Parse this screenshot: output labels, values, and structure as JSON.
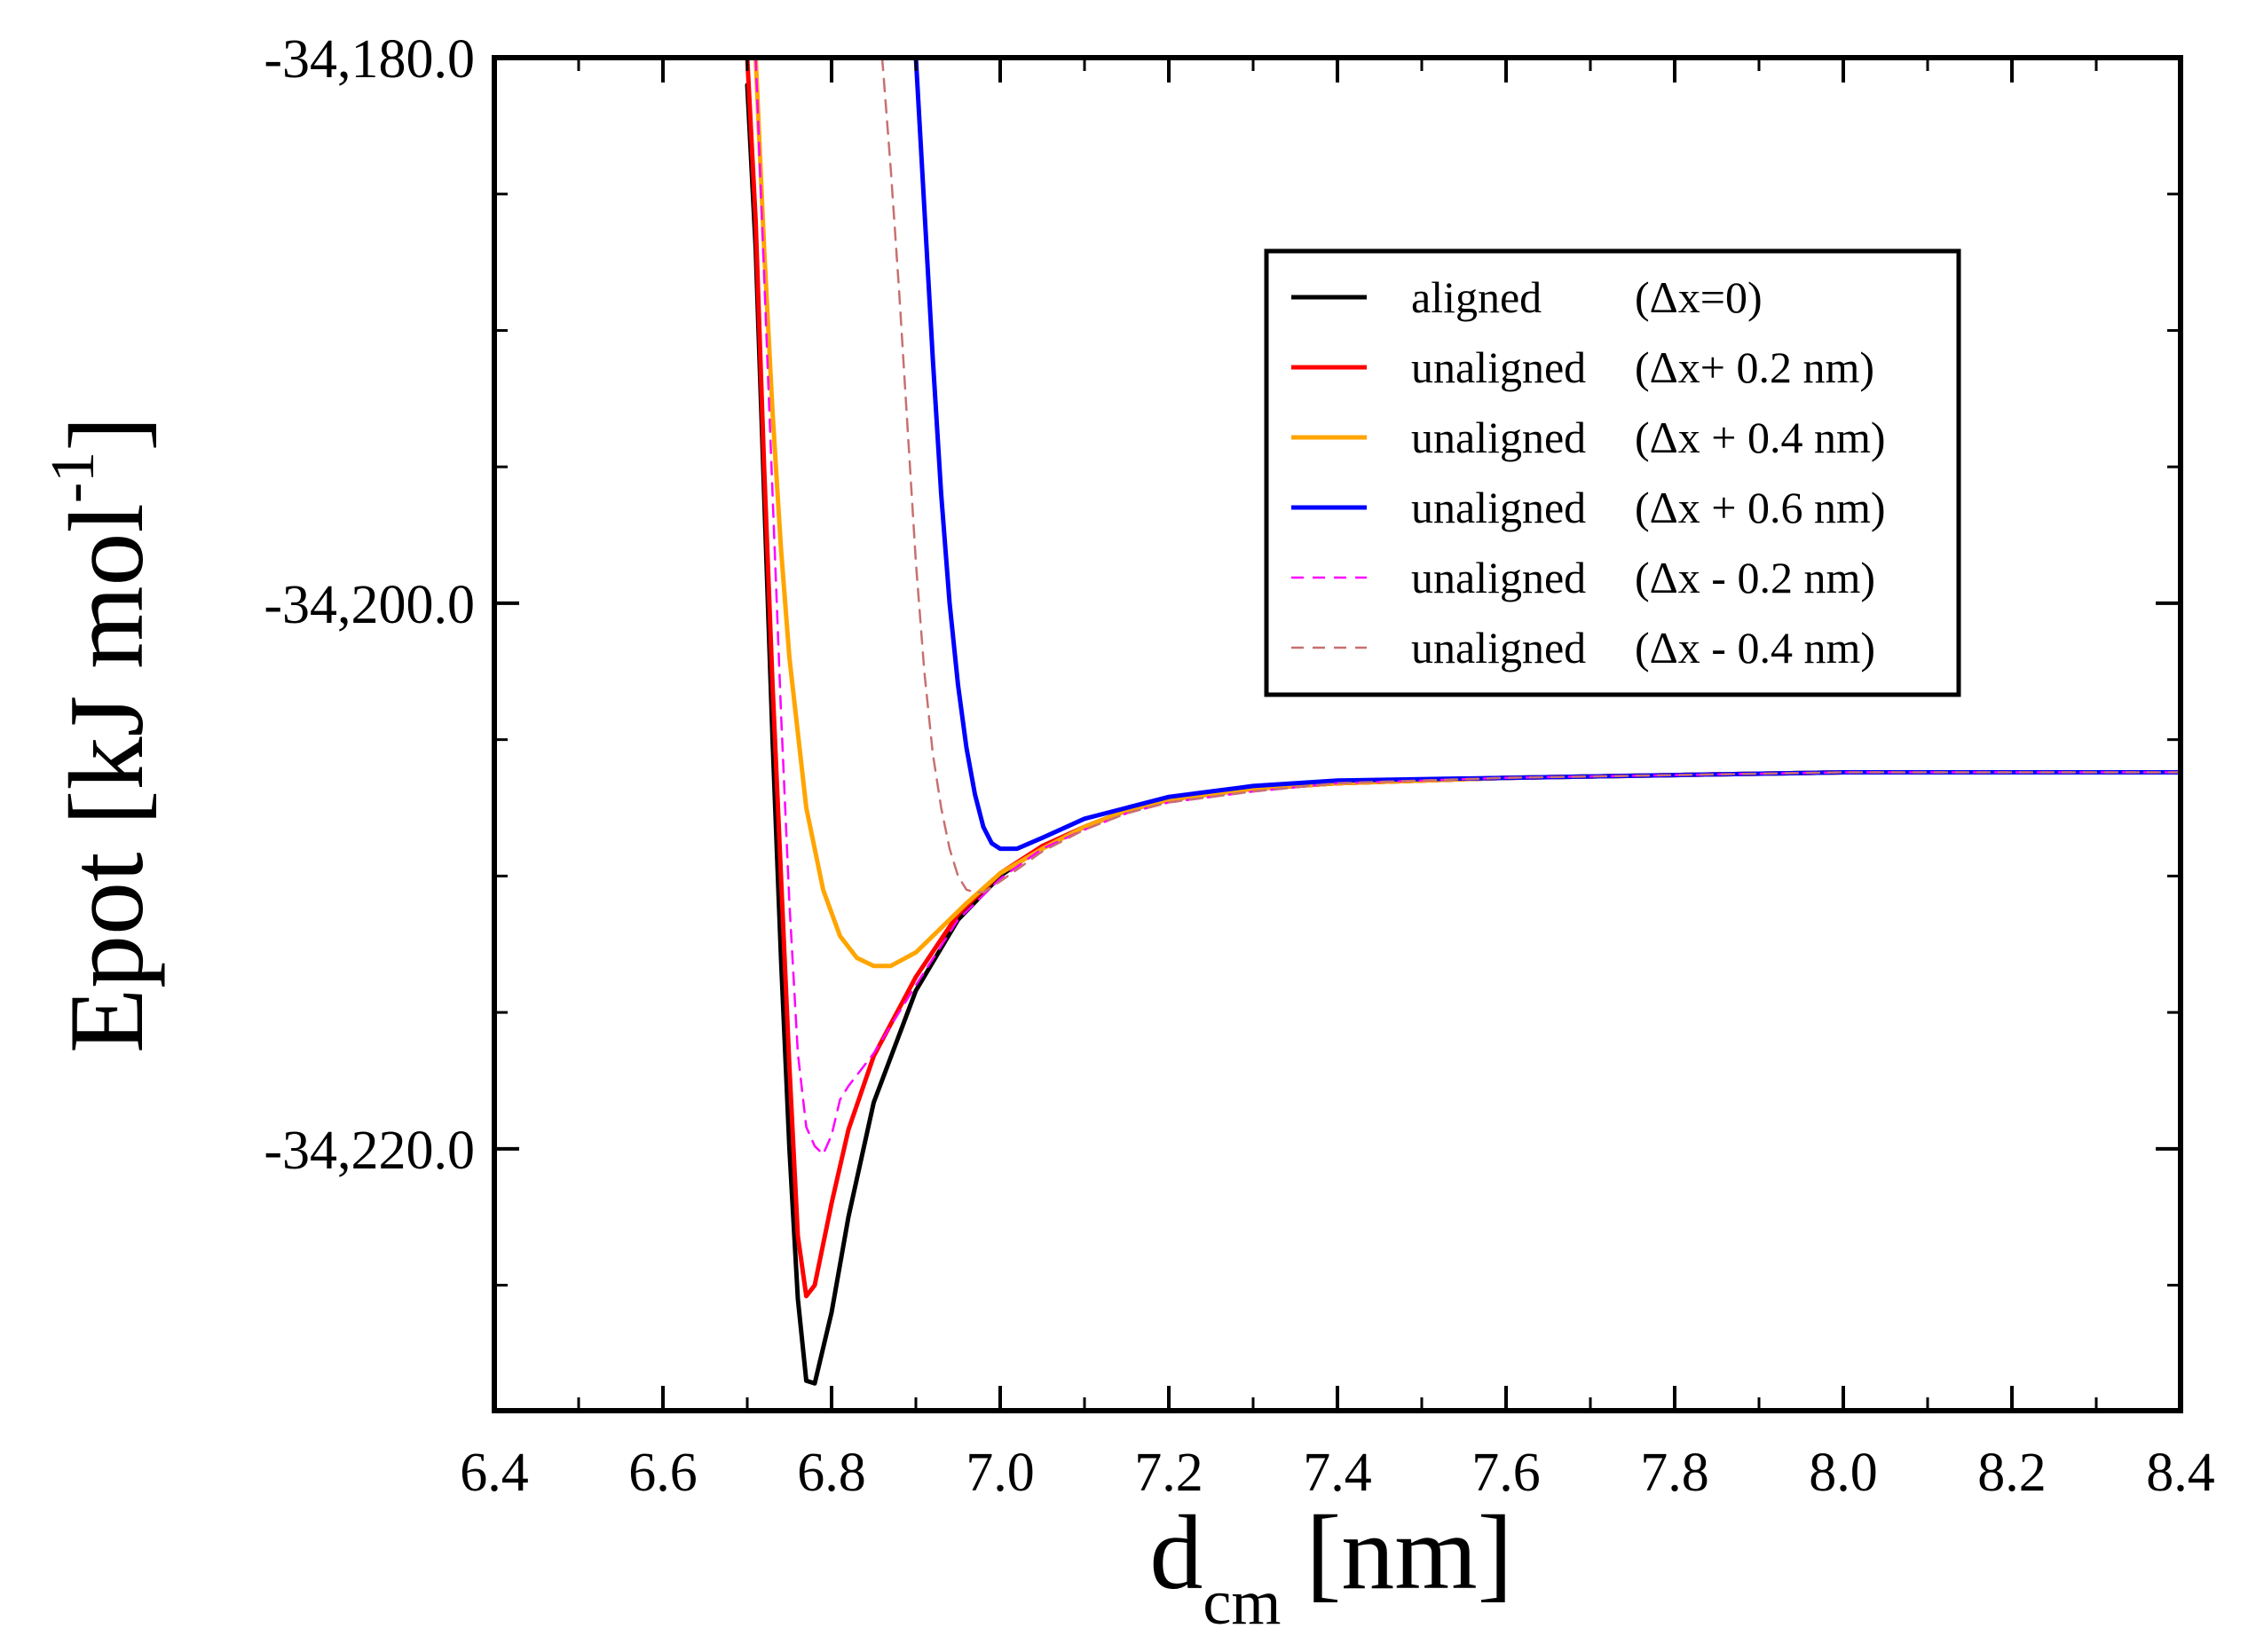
{
  "chart_data": {
    "type": "line",
    "xlabel": {
      "main": "d",
      "sub": "cm",
      "unit": "[nm]"
    },
    "ylabel": {
      "main": "Epot [kJ mol",
      "sup": "-1",
      "close": "]"
    },
    "xlim": [
      6.4,
      8.4
    ],
    "ylim": [
      -34229.6,
      -34180.0
    ],
    "x_ticks": [
      6.4,
      6.6,
      6.8,
      7.0,
      7.2,
      7.4,
      7.6,
      7.8,
      8.0,
      8.2,
      8.4
    ],
    "x_tick_labels": [
      "6.4",
      "6.6",
      "6.8",
      "7.0",
      "7.2",
      "7.4",
      "7.6",
      "7.8",
      "8.0",
      "8.2",
      "8.4"
    ],
    "y_major_ticks": [
      -34180.0,
      -34200.0,
      -34220.0
    ],
    "y_tick_labels": [
      "-34,180.0",
      "-34,200.0",
      "-34,220.0"
    ],
    "y_minor_ticks": [
      -34185.0,
      -34190.0,
      -34195.0,
      -34205.0,
      -34210.0,
      -34215.0,
      -34225.0
    ],
    "legend_position": "top-right",
    "series": [
      {
        "name": "aligned",
        "detail": "(Δx=0)",
        "color": "#000000",
        "style": "solid",
        "x": [
          6.7,
          6.71,
          6.72,
          6.73,
          6.74,
          6.75,
          6.76,
          6.77,
          6.78,
          6.8,
          6.82,
          6.85,
          6.9,
          6.95,
          7.0,
          7.05,
          7.1,
          7.15,
          7.2,
          7.3,
          7.4,
          7.6,
          7.8,
          8.0,
          8.2,
          8.4
        ],
        "y": [
          -34181,
          -34187,
          -34196,
          -34205,
          -34213,
          -34220,
          -34225.5,
          -34228.5,
          -34228.6,
          -34226,
          -34222.5,
          -34218.3,
          -34214.2,
          -34211.6,
          -34210.0,
          -34208.9,
          -34208.2,
          -34207.6,
          -34207.2,
          -34206.8,
          -34206.6,
          -34206.4,
          -34206.3,
          -34206.2,
          -34206.2,
          -34206.2
        ]
      },
      {
        "name": "unaligned",
        "detail": "(Δx+ 0.2 nm)",
        "color": "#ff0000",
        "style": "solid",
        "x": [
          6.7,
          6.71,
          6.72,
          6.73,
          6.74,
          6.75,
          6.76,
          6.77,
          6.78,
          6.8,
          6.82,
          6.85,
          6.9,
          6.95,
          7.0,
          7.05,
          7.1,
          7.15,
          7.2,
          7.3,
          7.4,
          7.6,
          7.8,
          8.0,
          8.2,
          8.4
        ],
        "y": [
          -34180,
          -34186,
          -34195,
          -34203,
          -34210,
          -34217,
          -34223.2,
          -34225.4,
          -34225.0,
          -34222.0,
          -34219.3,
          -34216.6,
          -34213.7,
          -34211.4,
          -34209.9,
          -34208.9,
          -34208.2,
          -34207.6,
          -34207.2,
          -34206.8,
          -34206.6,
          -34206.4,
          -34206.3,
          -34206.2,
          -34206.2,
          -34206.2
        ]
      },
      {
        "name": "unaligned",
        "detail": "(Δx + 0.4 nm)",
        "color": "#ffa500",
        "style": "solid",
        "x": [
          6.71,
          6.72,
          6.73,
          6.74,
          6.75,
          6.77,
          6.79,
          6.81,
          6.83,
          6.85,
          6.87,
          6.9,
          6.93,
          6.96,
          7.0,
          7.05,
          7.1,
          7.15,
          7.2,
          7.3,
          7.4,
          7.6,
          7.8,
          8.0,
          8.2,
          8.4
        ],
        "y": [
          -34180,
          -34187,
          -34193,
          -34198,
          -34202,
          -34207.5,
          -34210.5,
          -34212.2,
          -34213.0,
          -34213.3,
          -34213.3,
          -34212.8,
          -34211.9,
          -34211.0,
          -34209.9,
          -34209.0,
          -34208.2,
          -34207.6,
          -34207.2,
          -34206.8,
          -34206.6,
          -34206.4,
          -34206.3,
          -34206.2,
          -34206.2,
          -34206.2
        ]
      },
      {
        "name": "unaligned",
        "detail": "(Δx + 0.6 nm)",
        "color": "#0000ff",
        "style": "solid",
        "x": [
          6.9,
          6.91,
          6.92,
          6.93,
          6.94,
          6.95,
          6.96,
          6.97,
          6.98,
          6.99,
          7.0,
          7.02,
          7.05,
          7.1,
          7.15,
          7.2,
          7.3,
          7.4,
          7.6,
          7.8,
          8.0,
          8.2,
          8.4
        ],
        "y": [
          -34180,
          -34185.5,
          -34191,
          -34196,
          -34200,
          -34203,
          -34205.3,
          -34207.0,
          -34208.2,
          -34208.8,
          -34209.0,
          -34209.0,
          -34208.6,
          -34207.9,
          -34207.5,
          -34207.1,
          -34206.7,
          -34206.5,
          -34206.4,
          -34206.3,
          -34206.2,
          -34206.2,
          -34206.2
        ]
      },
      {
        "name": "unaligned",
        "detail": "(Δx - 0.2 nm)",
        "color": "#ff00ff",
        "style": "dashed",
        "x": [
          6.71,
          6.72,
          6.73,
          6.74,
          6.75,
          6.76,
          6.77,
          6.78,
          6.79,
          6.8,
          6.81,
          6.82,
          6.85,
          6.9,
          6.95,
          7.0,
          7.05,
          7.1,
          7.15,
          7.2,
          7.3,
          7.4,
          7.6,
          7.8,
          8.0,
          8.2,
          8.4
        ],
        "y": [
          -34180,
          -34188,
          -34196,
          -34204,
          -34211,
          -34216.5,
          -34219.2,
          -34219.9,
          -34220.2,
          -34219.5,
          -34218.2,
          -34217.7,
          -34216.5,
          -34214.0,
          -34211.6,
          -34210.1,
          -34209.0,
          -34208.3,
          -34207.7,
          -34207.3,
          -34206.9,
          -34206.6,
          -34206.4,
          -34206.3,
          -34206.2,
          -34206.2,
          -34206.2
        ]
      },
      {
        "name": "unaligned",
        "detail": "(Δx - 0.4 nm)",
        "color": "#c87070",
        "style": "dashed",
        "x": [
          6.86,
          6.87,
          6.88,
          6.89,
          6.9,
          6.91,
          6.92,
          6.93,
          6.94,
          6.95,
          6.96,
          6.97,
          6.98,
          7.0,
          7.05,
          7.1,
          7.15,
          7.2,
          7.3,
          7.4,
          7.6,
          7.8,
          8.0,
          8.2,
          8.4
        ],
        "y": [
          -34180,
          -34184,
          -34188.5,
          -34193.5,
          -34198.5,
          -34202.5,
          -34205.5,
          -34207.5,
          -34209.0,
          -34210.0,
          -34210.5,
          -34210.6,
          -34210.6,
          -34210.2,
          -34209.1,
          -34208.3,
          -34207.7,
          -34207.3,
          -34206.9,
          -34206.6,
          -34206.4,
          -34206.3,
          -34206.2,
          -34206.2,
          -34206.2
        ]
      }
    ]
  }
}
